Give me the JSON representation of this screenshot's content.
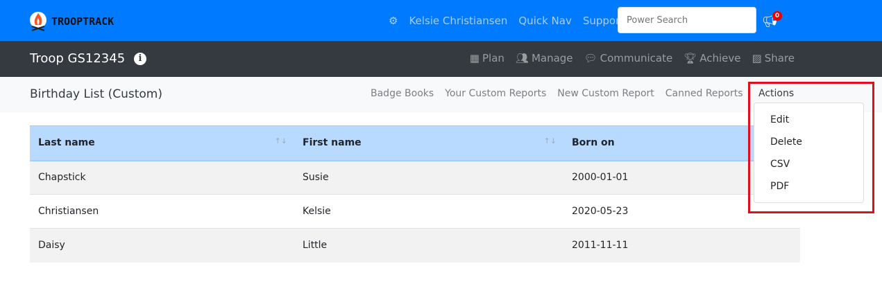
{
  "brand": {
    "name": "TROOPTRACK"
  },
  "topbar": {
    "user": "Kelsie Christiansen",
    "quick_nav": "Quick Nav",
    "support": "Support",
    "search_placeholder": "Power Search",
    "notification_count": "0"
  },
  "troopbar": {
    "title": "Troop GS12345",
    "nav": [
      "Plan",
      "Manage",
      "Communicate",
      "Achieve",
      "Share"
    ]
  },
  "subbar": {
    "title": "Birthday List (Custom)",
    "links": [
      "Badge Books",
      "Your Custom Reports",
      "New Custom Report",
      "Canned Reports"
    ],
    "actions": "Actions"
  },
  "actions_menu": [
    "Edit",
    "Delete",
    "CSV",
    "PDF"
  ],
  "table": {
    "headers": [
      "Last name",
      "First name",
      "Born on"
    ],
    "rows": [
      [
        "Chapstick",
        "Susie",
        "2000-01-01"
      ],
      [
        "Christiansen",
        "Kelsie",
        "2020-05-23"
      ],
      [
        "Daisy",
        "Little",
        "2011-11-11"
      ]
    ]
  },
  "colors": {
    "primary": "#007bff",
    "dark": "#343a40",
    "header_row": "#b8daff",
    "highlight": "#e0101a"
  }
}
